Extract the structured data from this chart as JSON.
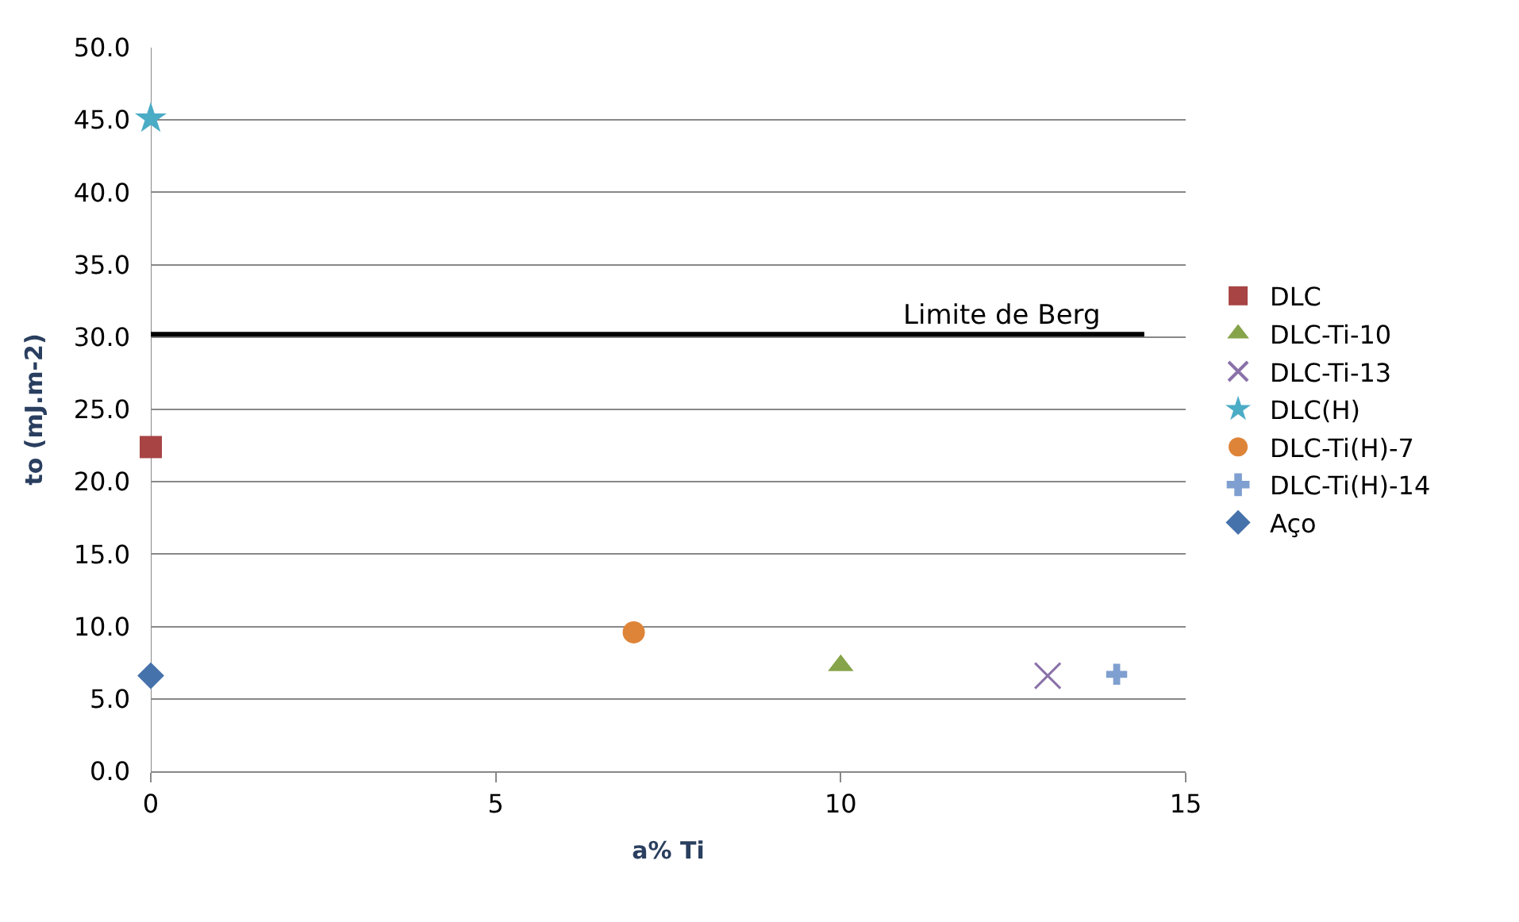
{
  "chart_data": {
    "type": "scatter",
    "xlabel": "a% Ti",
    "ylabel": "to (mJ.m-2)",
    "xlim": [
      0,
      15
    ],
    "xticks": [
      0,
      5,
      10,
      15
    ],
    "ylim": [
      0,
      50
    ],
    "yticks": [
      {
        "value": 0,
        "label": "0.0"
      },
      {
        "value": 5,
        "label": "5.0"
      },
      {
        "value": 10,
        "label": "10.0"
      },
      {
        "value": 15,
        "label": "15.0"
      },
      {
        "value": 20,
        "label": "20.0"
      },
      {
        "value": 25,
        "label": "25.0"
      },
      {
        "value": 30,
        "label": "30.0"
      },
      {
        "value": 35,
        "label": "35.0"
      },
      {
        "value": 40,
        "label": "40.0"
      },
      {
        "value": 45,
        "label": "45.0"
      },
      {
        "value": 50,
        "label": "50.0"
      }
    ],
    "grid": "y",
    "legend": "right",
    "ref_lines": [
      {
        "axis": "y",
        "value": 30.2,
        "label": "Limite de Berg",
        "color": "#000000"
      }
    ],
    "series": [
      {
        "name": "DLC",
        "color": "#a84444",
        "marker": "square",
        "x": [
          0
        ],
        "values": [
          22.4
        ]
      },
      {
        "name": "DLC-Ti-10",
        "color": "#86a44a",
        "marker": "triangle",
        "x": [
          10
        ],
        "values": [
          7.3
        ]
      },
      {
        "name": "DLC-Ti-13",
        "color": "#8a72a8",
        "marker": "x",
        "x": [
          13
        ],
        "values": [
          6.6
        ]
      },
      {
        "name": "DLC(H)",
        "color": "#4bacc6",
        "marker": "star",
        "x": [
          0
        ],
        "values": [
          45.1
        ]
      },
      {
        "name": "DLC-Ti(H)-7",
        "color": "#de8438",
        "marker": "circle",
        "x": [
          7
        ],
        "values": [
          9.6
        ]
      },
      {
        "name": "DLC-Ti(H)-14",
        "color": "#7f9fd0",
        "marker": "cross",
        "x": [
          14
        ],
        "values": [
          6.7
        ]
      },
      {
        "name": "Aço",
        "color": "#4672ab",
        "marker": "diamond",
        "x": [
          0
        ],
        "values": [
          6.6
        ]
      }
    ]
  }
}
